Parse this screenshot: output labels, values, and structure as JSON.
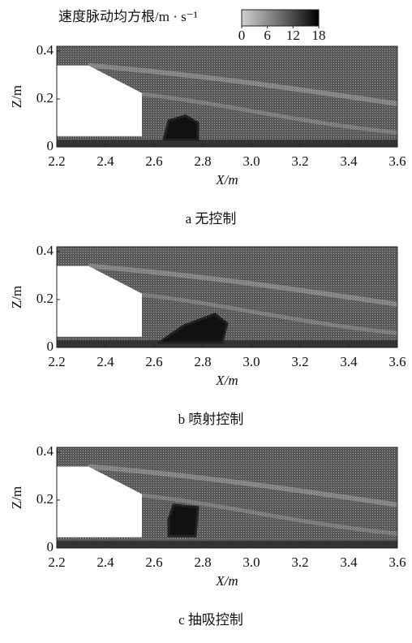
{
  "colorbar": {
    "label": "速度脉动均方根/m · s⁻¹",
    "clim": [
      0,
      18
    ],
    "ticks": [
      0,
      6,
      12,
      18
    ]
  },
  "chart_data": [
    {
      "type": "contour",
      "caption": "a 无控制",
      "xlabel": "X/m",
      "ylabel": "Z/m",
      "xlim": [
        2.2,
        3.6
      ],
      "ylim": [
        0,
        0.42
      ],
      "xticks": [
        2.2,
        2.4,
        2.6,
        2.8,
        {
          "value": 3,
          "label": "3.0"
        },
        3.2,
        3.4,
        3.6
      ],
      "yticks": [
        0,
        0.2,
        0.4
      ]
    },
    {
      "type": "contour",
      "caption": "b 喷射控制",
      "xlabel": "X/m",
      "ylabel": "Z/m",
      "xlim": [
        2.2,
        3.6
      ],
      "ylim": [
        0,
        0.42
      ],
      "xticks": [
        2.2,
        2.4,
        2.6,
        2.8,
        {
          "value": 3,
          "label": "3.0"
        },
        3.2,
        3.4,
        3.6
      ],
      "yticks": [
        0,
        0.2,
        0.4
      ]
    },
    {
      "type": "contour",
      "caption": "c 抽吸控制",
      "xlabel": "X/m",
      "ylabel": "Z/m",
      "xlim": [
        2.2,
        3.6
      ],
      "ylim": [
        0,
        0.42
      ],
      "xticks": [
        2.2,
        2.4,
        2.6,
        2.8,
        {
          "value": 3,
          "label": "3.0"
        },
        3.2,
        3.4,
        3.6
      ],
      "yticks": [
        0,
        0.2,
        0.4
      ]
    }
  ]
}
